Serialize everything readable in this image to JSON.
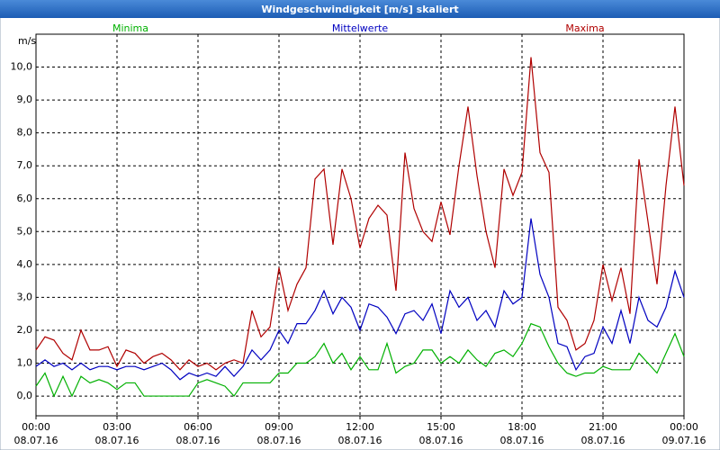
{
  "chart_data": {
    "type": "line",
    "title": "Windgeschwindigkeit [m/s] skaliert",
    "ylabel": "m/s",
    "x": [
      "08.07.16 00:00",
      "08.07.16 00:20",
      "08.07.16 00:40",
      "08.07.16 01:00",
      "08.07.16 01:20",
      "08.07.16 01:40",
      "08.07.16 02:00",
      "08.07.16 02:20",
      "08.07.16 02:40",
      "08.07.16 03:00",
      "08.07.16 03:20",
      "08.07.16 03:40",
      "08.07.16 04:00",
      "08.07.16 04:20",
      "08.07.16 04:40",
      "08.07.16 05:00",
      "08.07.16 05:20",
      "08.07.16 05:40",
      "08.07.16 06:00",
      "08.07.16 06:20",
      "08.07.16 06:40",
      "08.07.16 07:00",
      "08.07.16 07:20",
      "08.07.16 07:40",
      "08.07.16 08:00",
      "08.07.16 08:20",
      "08.07.16 08:40",
      "08.07.16 09:00",
      "08.07.16 09:20",
      "08.07.16 09:40",
      "08.07.16 10:00",
      "08.07.16 10:20",
      "08.07.16 10:40",
      "08.07.16 11:00",
      "08.07.16 11:20",
      "08.07.16 11:40",
      "08.07.16 12:00",
      "08.07.16 12:20",
      "08.07.16 12:40",
      "08.07.16 13:00",
      "08.07.16 13:20",
      "08.07.16 13:40",
      "08.07.16 14:00",
      "08.07.16 14:20",
      "08.07.16 14:40",
      "08.07.16 15:00",
      "08.07.16 15:20",
      "08.07.16 15:40",
      "08.07.16 16:00",
      "08.07.16 16:20",
      "08.07.16 16:40",
      "08.07.16 17:00",
      "08.07.16 17:20",
      "08.07.16 17:40",
      "08.07.16 18:00",
      "08.07.16 18:20",
      "08.07.16 18:40",
      "08.07.16 19:00",
      "08.07.16 19:20",
      "08.07.16 19:40",
      "08.07.16 20:00",
      "08.07.16 20:20",
      "08.07.16 20:40",
      "08.07.16 21:00",
      "08.07.16 21:20",
      "08.07.16 21:40",
      "08.07.16 22:00",
      "08.07.16 22:20",
      "08.07.16 22:40",
      "08.07.16 23:00",
      "08.07.16 23:20",
      "08.07.16 23:40",
      "09.07.16 00:00"
    ],
    "series": [
      {
        "name": "Minima",
        "color": "#00b000",
        "values": [
          0.3,
          0.7,
          0.0,
          0.6,
          0.0,
          0.6,
          0.4,
          0.5,
          0.4,
          0.2,
          0.4,
          0.4,
          0.0,
          0.0,
          0.0,
          0.0,
          0.0,
          0.0,
          0.4,
          0.5,
          0.4,
          0.3,
          0.0,
          0.4,
          0.4,
          0.4,
          0.4,
          0.7,
          0.7,
          1.0,
          1.0,
          1.2,
          1.6,
          1.0,
          1.3,
          0.8,
          1.2,
          0.8,
          0.8,
          1.6,
          0.7,
          0.9,
          1.0,
          1.4,
          1.4,
          1.0,
          1.2,
          1.0,
          1.4,
          1.1,
          0.9,
          1.3,
          1.4,
          1.2,
          1.6,
          2.2,
          2.1,
          1.5,
          1.0,
          0.7,
          0.6,
          0.7,
          0.7,
          0.9,
          0.8,
          0.8,
          0.8,
          1.3,
          1.0,
          0.7,
          1.3,
          1.9,
          1.2
        ]
      },
      {
        "name": "Mittelwerte",
        "color": "#0000c0",
        "values": [
          0.9,
          1.1,
          0.9,
          1.0,
          0.8,
          1.0,
          0.8,
          0.9,
          0.9,
          0.8,
          0.9,
          0.9,
          0.8,
          0.9,
          1.0,
          0.8,
          0.5,
          0.7,
          0.6,
          0.7,
          0.6,
          0.9,
          0.6,
          0.9,
          1.4,
          1.1,
          1.4,
          2.0,
          1.6,
          2.2,
          2.2,
          2.6,
          3.2,
          2.5,
          3.0,
          2.7,
          2.0,
          2.8,
          2.7,
          2.4,
          1.9,
          2.5,
          2.6,
          2.3,
          2.8,
          1.9,
          3.2,
          2.7,
          3.0,
          2.3,
          2.6,
          2.1,
          3.2,
          2.8,
          3.0,
          5.4,
          3.7,
          3.0,
          1.6,
          1.5,
          0.8,
          1.2,
          1.3,
          2.1,
          1.6,
          2.6,
          1.6,
          3.0,
          2.3,
          2.1,
          2.7,
          3.8,
          3.0
        ]
      },
      {
        "name": "Maxima",
        "color": "#b00000",
        "values": [
          1.4,
          1.8,
          1.7,
          1.3,
          1.1,
          2.0,
          1.4,
          1.4,
          1.5,
          0.9,
          1.4,
          1.3,
          1.0,
          1.2,
          1.3,
          1.1,
          0.8,
          1.1,
          0.9,
          1.0,
          0.8,
          1.0,
          1.1,
          1.0,
          2.6,
          1.8,
          2.1,
          3.9,
          2.6,
          3.4,
          3.9,
          6.6,
          6.9,
          4.6,
          6.9,
          6.0,
          4.5,
          5.4,
          5.8,
          5.5,
          3.2,
          7.4,
          5.7,
          5.0,
          4.7,
          5.9,
          4.9,
          7.0,
          8.8,
          6.7,
          5.0,
          3.9,
          6.9,
          6.1,
          6.8,
          10.3,
          7.4,
          6.8,
          2.7,
          2.3,
          1.4,
          1.6,
          2.3,
          4.0,
          2.9,
          3.9,
          2.5,
          7.2,
          5.3,
          3.4,
          6.4,
          8.8,
          6.4
        ]
      }
    ],
    "xlim": [
      "08.07.16 00:00",
      "09.07.16 00:00"
    ],
    "xticks": [
      {
        "value": "08.07.16 00:00",
        "label": [
          "00:00",
          "08.07.16"
        ]
      },
      {
        "value": "08.07.16 03:00",
        "label": [
          "03:00",
          "08.07.16"
        ]
      },
      {
        "value": "08.07.16 06:00",
        "label": [
          "06:00",
          "08.07.16"
        ]
      },
      {
        "value": "08.07.16 09:00",
        "label": [
          "09:00",
          "08.07.16"
        ]
      },
      {
        "value": "08.07.16 12:00",
        "label": [
          "12:00",
          "08.07.16"
        ]
      },
      {
        "value": "08.07.16 15:00",
        "label": [
          "15:00",
          "08.07.16"
        ]
      },
      {
        "value": "08.07.16 18:00",
        "label": [
          "18:00",
          "08.07.16"
        ]
      },
      {
        "value": "08.07.16 21:00",
        "label": [
          "21:00",
          "08.07.16"
        ]
      },
      {
        "value": "09.07.16 00:00",
        "label": [
          "00:00",
          "09.07.16"
        ]
      }
    ],
    "ylim": [
      -0.6,
      11.0
    ],
    "yticks": [
      {
        "value": 0,
        "label": "0,0"
      },
      {
        "value": 1,
        "label": "1,0"
      },
      {
        "value": 2,
        "label": "2,0"
      },
      {
        "value": 3,
        "label": "3,0"
      },
      {
        "value": 4,
        "label": "4,0"
      },
      {
        "value": 5,
        "label": "5,0"
      },
      {
        "value": 6,
        "label": "6,0"
      },
      {
        "value": 7,
        "label": "7,0"
      },
      {
        "value": 8,
        "label": "8,0"
      },
      {
        "value": 9,
        "label": "9,0"
      },
      {
        "value": 10,
        "label": "10,0"
      }
    ],
    "grid": true
  }
}
